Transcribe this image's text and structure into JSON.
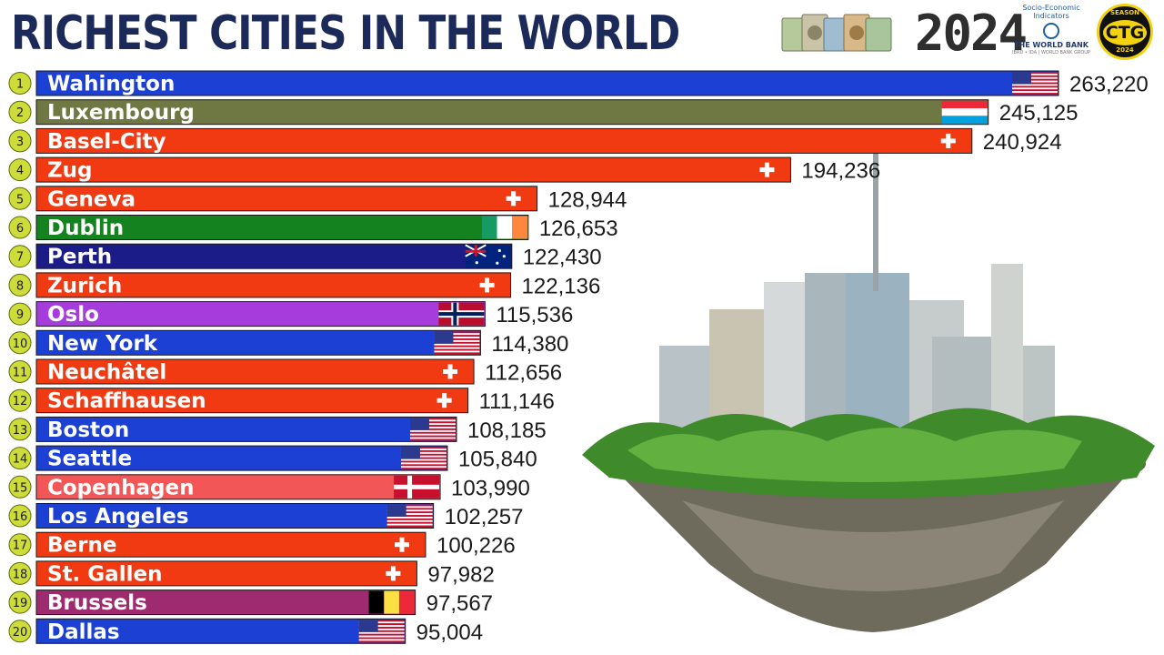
{
  "header": {
    "title": "RICHEST CITIES IN THE WORLD",
    "year": "2024",
    "source_top": "Socio-Economic Indicators",
    "source_name": "THE WORLD BANK",
    "source_sub": "IBRD • IDA | WORLD BANK GROUP",
    "logo_text": "CTG",
    "logo_top": "SEASON",
    "logo_bottom": "2024"
  },
  "colors": {
    "usa": "#1c3fd4",
    "luxembourg": "#6f7743",
    "switzerland": "#f23a12",
    "ireland": "#14821e",
    "australia": "#1b1c88",
    "norway": "#a53cdb",
    "denmark": "#f25656",
    "belgium": "#9e2a6f",
    "rank_badge": "#cddc39"
  },
  "chart_data": {
    "type": "bar",
    "orientation": "horizontal",
    "title": "RICHEST CITIES IN THE WORLD",
    "categories": [
      "Wahington",
      "Luxembourg",
      "Basel-City",
      "Zug",
      "Geneva",
      "Dublin",
      "Perth",
      "Zurich",
      "Oslo",
      "New York",
      "Neuchâtel",
      "Schaffhausen",
      "Boston",
      "Seattle",
      "Copenhagen",
      "Los Angeles",
      "Berne",
      "St. Gallen",
      "Brussels",
      "Dallas"
    ],
    "values": [
      263220,
      245125,
      240924,
      194236,
      128944,
      126653,
      122430,
      122136,
      115536,
      114380,
      112656,
      111146,
      108185,
      105840,
      103990,
      102257,
      100226,
      97982,
      97567,
      95004
    ],
    "value_labels": [
      "263,220",
      "245,125",
      "240,924",
      "194,236",
      "128,944",
      "126,653",
      "122,430",
      "122,136",
      "115,536",
      "114,380",
      "112,656",
      "111,146",
      "108,185",
      "105,840",
      "103,990",
      "102,257",
      "100,226",
      "97,982",
      "97,567",
      "95,004"
    ],
    "ranks": [
      "1",
      "2",
      "3",
      "4",
      "5",
      "6",
      "7",
      "8",
      "9",
      "10",
      "11",
      "12",
      "13",
      "14",
      "15",
      "16",
      "17",
      "18",
      "19",
      "20"
    ],
    "countries": [
      "usa",
      "luxembourg",
      "switzerland",
      "switzerland",
      "switzerland",
      "ireland",
      "australia",
      "switzerland",
      "norway",
      "usa",
      "switzerland",
      "switzerland",
      "usa",
      "usa",
      "denmark",
      "usa",
      "switzerland",
      "switzerland",
      "belgium",
      "usa"
    ],
    "flag_icons": [
      "usa-flag-icon",
      "luxembourg-flag-icon",
      "switzerland-flag-icon",
      "switzerland-flag-icon",
      "switzerland-flag-icon",
      "ireland-flag-icon",
      "australia-flag-icon",
      "switzerland-flag-icon",
      "norway-flag-icon",
      "usa-flag-icon",
      "switzerland-flag-icon",
      "switzerland-flag-icon",
      "usa-flag-icon",
      "usa-flag-icon",
      "denmark-flag-icon",
      "usa-flag-icon",
      "switzerland-flag-icon",
      "switzerland-flag-icon",
      "belgium-flag-icon",
      "usa-flag-icon"
    ],
    "grid": false,
    "legend": "none"
  }
}
